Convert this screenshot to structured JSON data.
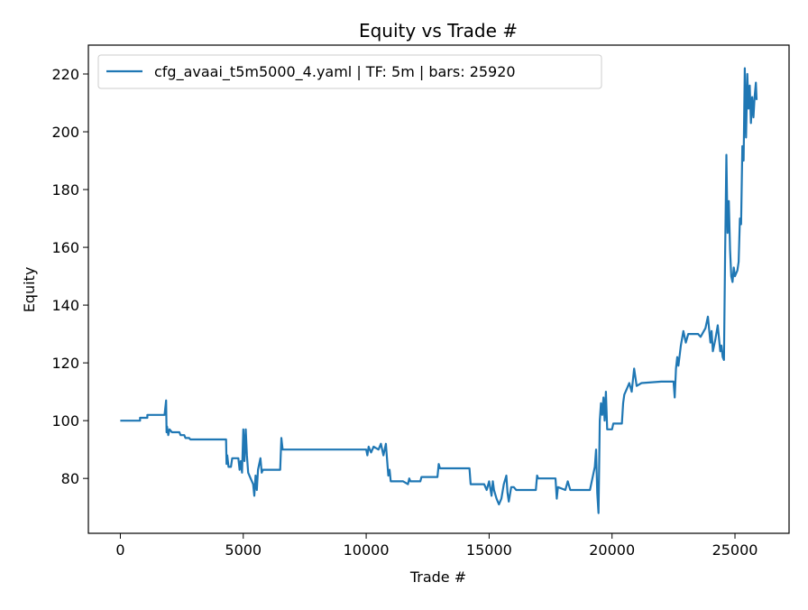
{
  "chart_data": {
    "type": "line",
    "title": "Equity vs Trade #",
    "xlabel": "Trade #",
    "ylabel": "Equity",
    "xlim": [
      -1300,
      27200
    ],
    "ylim": [
      61,
      230
    ],
    "xticks": [
      0,
      5000,
      10000,
      15000,
      20000,
      25000
    ],
    "yticks": [
      80,
      100,
      120,
      140,
      160,
      180,
      200,
      220
    ],
    "grid": false,
    "legend": "top-left",
    "series": [
      {
        "name": "cfg_avaai_t5m5000_4.yaml | TF: 5m | bars: 25920",
        "color": "#1f77b4",
        "points": [
          [
            0,
            100
          ],
          [
            800,
            100
          ],
          [
            800,
            101
          ],
          [
            1100,
            101
          ],
          [
            1100,
            102
          ],
          [
            1800,
            102
          ],
          [
            1860,
            107
          ],
          [
            1880,
            96
          ],
          [
            1900,
            98
          ],
          [
            1950,
            95
          ],
          [
            2000,
            97
          ],
          [
            2100,
            96
          ],
          [
            2400,
            96
          ],
          [
            2450,
            95
          ],
          [
            2600,
            95
          ],
          [
            2650,
            94
          ],
          [
            2800,
            94
          ],
          [
            2850,
            93.5
          ],
          [
            4300,
            93.5
          ],
          [
            4320,
            85
          ],
          [
            4350,
            88
          ],
          [
            4400,
            84
          ],
          [
            4500,
            84
          ],
          [
            4550,
            87
          ],
          [
            4800,
            87
          ],
          [
            4850,
            83
          ],
          [
            4900,
            86
          ],
          [
            4950,
            82
          ],
          [
            5000,
            97
          ],
          [
            5050,
            86
          ],
          [
            5100,
            97
          ],
          [
            5150,
            88
          ],
          [
            5200,
            82
          ],
          [
            5300,
            80
          ],
          [
            5400,
            78
          ],
          [
            5450,
            74
          ],
          [
            5500,
            81
          ],
          [
            5550,
            76
          ],
          [
            5600,
            83
          ],
          [
            5700,
            87
          ],
          [
            5750,
            82
          ],
          [
            5800,
            83
          ],
          [
            6500,
            83
          ],
          [
            6550,
            94
          ],
          [
            6600,
            90
          ],
          [
            7000,
            90
          ],
          [
            7500,
            90
          ],
          [
            8000,
            90
          ],
          [
            8500,
            90
          ],
          [
            9000,
            90
          ],
          [
            9500,
            90
          ],
          [
            10000,
            90
          ],
          [
            10050,
            88
          ],
          [
            10100,
            91
          ],
          [
            10200,
            89
          ],
          [
            10300,
            91
          ],
          [
            10500,
            90
          ],
          [
            10600,
            92
          ],
          [
            10700,
            88
          ],
          [
            10800,
            92
          ],
          [
            10900,
            81
          ],
          [
            10950,
            83
          ],
          [
            11000,
            79
          ],
          [
            11500,
            79
          ],
          [
            11700,
            78
          ],
          [
            11750,
            80
          ],
          [
            11800,
            79
          ],
          [
            12200,
            79
          ],
          [
            12250,
            80.5
          ],
          [
            12900,
            80.5
          ],
          [
            12950,
            85
          ],
          [
            13000,
            83.5
          ],
          [
            14200,
            83.5
          ],
          [
            14250,
            78
          ],
          [
            14800,
            78
          ],
          [
            14900,
            76
          ],
          [
            15000,
            79
          ],
          [
            15100,
            74
          ],
          [
            15150,
            79
          ],
          [
            15200,
            76
          ],
          [
            15300,
            73
          ],
          [
            15400,
            71
          ],
          [
            15500,
            73
          ],
          [
            15600,
            78
          ],
          [
            15700,
            81
          ],
          [
            15750,
            75
          ],
          [
            15800,
            72
          ],
          [
            15900,
            77
          ],
          [
            16000,
            77
          ],
          [
            16100,
            76
          ],
          [
            16900,
            76
          ],
          [
            16950,
            81
          ],
          [
            17000,
            80
          ],
          [
            17700,
            80
          ],
          [
            17750,
            73
          ],
          [
            17800,
            77
          ],
          [
            18100,
            76
          ],
          [
            18200,
            79
          ],
          [
            18300,
            76
          ],
          [
            19000,
            76
          ],
          [
            19100,
            76
          ],
          [
            19200,
            80
          ],
          [
            19300,
            84
          ],
          [
            19350,
            90
          ],
          [
            19400,
            75
          ],
          [
            19450,
            68
          ],
          [
            19500,
            100
          ],
          [
            19550,
            106
          ],
          [
            19600,
            102
          ],
          [
            19650,
            108
          ],
          [
            19700,
            100
          ],
          [
            19750,
            110
          ],
          [
            19800,
            97
          ],
          [
            20000,
            97
          ],
          [
            20050,
            99
          ],
          [
            20400,
            99
          ],
          [
            20450,
            106
          ],
          [
            20500,
            109
          ],
          [
            20600,
            111
          ],
          [
            20700,
            113
          ],
          [
            20800,
            110
          ],
          [
            20900,
            118
          ],
          [
            21000,
            112
          ],
          [
            21200,
            113
          ],
          [
            22000,
            113.5
          ],
          [
            22500,
            113.5
          ],
          [
            22550,
            108
          ],
          [
            22600,
            118
          ],
          [
            22650,
            122
          ],
          [
            22700,
            119
          ],
          [
            22800,
            126
          ],
          [
            22900,
            131
          ],
          [
            23000,
            127
          ],
          [
            23100,
            130
          ],
          [
            23500,
            130
          ],
          [
            23600,
            129
          ],
          [
            23800,
            132
          ],
          [
            23900,
            136
          ],
          [
            24000,
            127
          ],
          [
            24050,
            131
          ],
          [
            24100,
            124
          ],
          [
            24200,
            128
          ],
          [
            24300,
            133
          ],
          [
            24400,
            124
          ],
          [
            24450,
            126
          ],
          [
            24500,
            122
          ],
          [
            24550,
            121
          ],
          [
            24600,
            158
          ],
          [
            24650,
            192
          ],
          [
            24700,
            165
          ],
          [
            24750,
            176
          ],
          [
            24800,
            159
          ],
          [
            24850,
            150
          ],
          [
            24900,
            148
          ],
          [
            24950,
            153
          ],
          [
            25000,
            150
          ],
          [
            25100,
            152
          ],
          [
            25150,
            155
          ],
          [
            25200,
            170
          ],
          [
            25250,
            168
          ],
          [
            25300,
            195
          ],
          [
            25350,
            190
          ],
          [
            25400,
            222
          ],
          [
            25450,
            198
          ],
          [
            25500,
            220
          ],
          [
            25550,
            208
          ],
          [
            25600,
            216
          ],
          [
            25650,
            203
          ],
          [
            25700,
            212
          ],
          [
            25750,
            205
          ],
          [
            25800,
            212
          ],
          [
            25850,
            217
          ],
          [
            25880,
            211
          ]
        ]
      }
    ]
  }
}
